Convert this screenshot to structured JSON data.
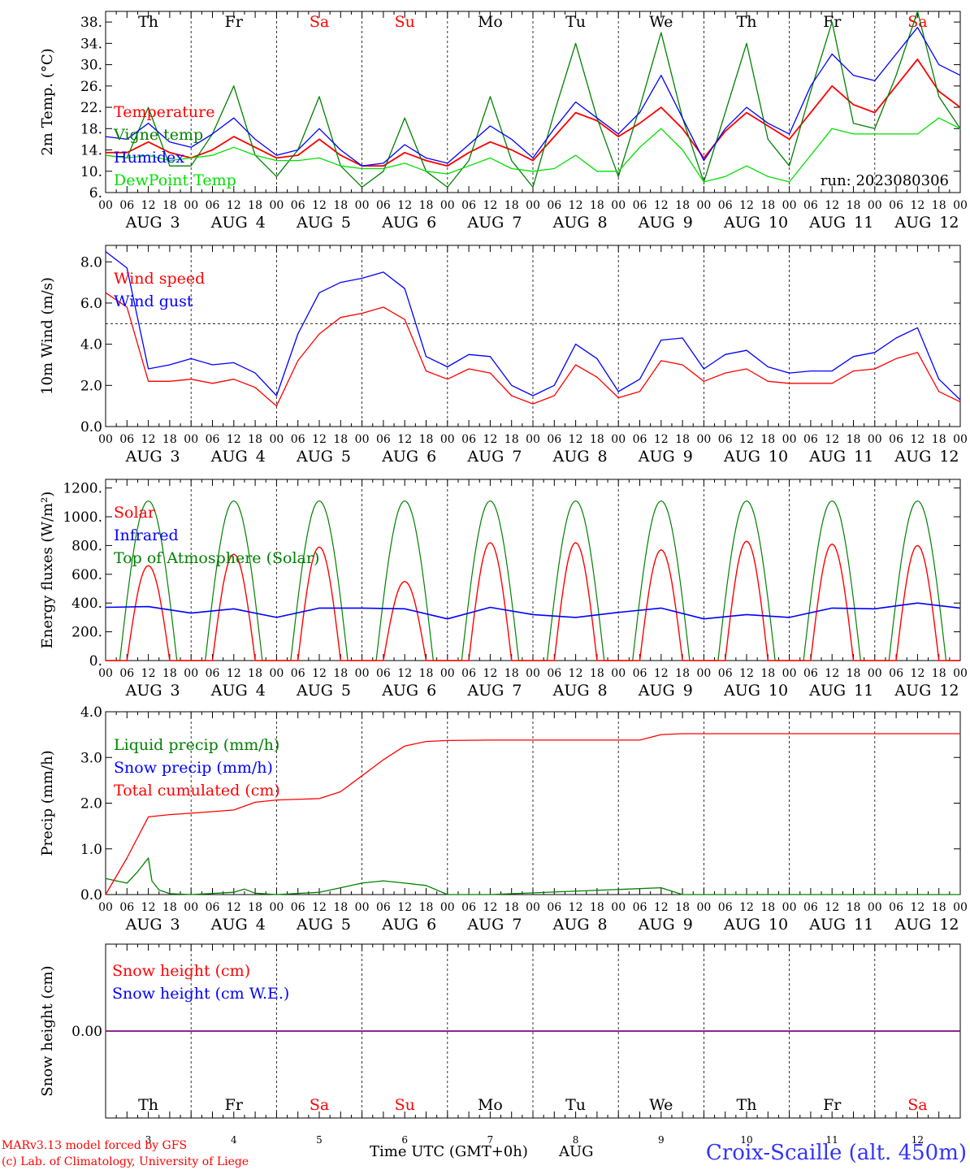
{
  "meta": {
    "run_label": "run: 2023080306",
    "station": "Croix-Scaille (alt. 450m)",
    "credits": [
      "MARv3.13 model forced by GFS",
      "(c) Lab. of Climatology, University of Liege"
    ],
    "xaxis_title": "Time UTC (GMT+0h)",
    "month": "AUG"
  },
  "days": [
    {
      "abbr": "Th",
      "weekend": false,
      "date": "3"
    },
    {
      "abbr": "Fr",
      "weekend": false,
      "date": "4"
    },
    {
      "abbr": "Sa",
      "weekend": true,
      "date": "5"
    },
    {
      "abbr": "Su",
      "weekend": true,
      "date": "6"
    },
    {
      "abbr": "Mo",
      "weekend": false,
      "date": "7"
    },
    {
      "abbr": "Tu",
      "weekend": false,
      "date": "8"
    },
    {
      "abbr": "We",
      "weekend": false,
      "date": "9"
    },
    {
      "abbr": "Th",
      "weekend": false,
      "date": "10"
    },
    {
      "abbr": "Fr",
      "weekend": false,
      "date": "11"
    },
    {
      "abbr": "Sa",
      "weekend": true,
      "date": "12"
    }
  ],
  "hour_labels": [
    "00",
    "06",
    "12",
    "18"
  ],
  "end_hour_label": "00",
  "date_label_prefix": "AUG",
  "colors": {
    "red": "#ff0000",
    "green": "#008000",
    "blue": "#0000ff",
    "lime": "#00e000",
    "purple": "#800080",
    "station": "#3333ff"
  },
  "chart_data": [
    {
      "type": "line",
      "ylabel": "2m Temp. (°C)",
      "ylim": [
        6,
        40
      ],
      "yticks": [
        6,
        10,
        14,
        18,
        22,
        26,
        30,
        34,
        38
      ],
      "ytick_labels": [
        "6.",
        "10.",
        "14.",
        "18.",
        "22.",
        "26.",
        "30.",
        "34.",
        "38."
      ],
      "series": [
        {
          "name": "Temperature",
          "color": "#ff0000",
          "x": [
            0,
            6,
            12,
            18,
            24,
            30,
            36,
            42,
            48,
            54,
            60,
            66,
            72,
            78,
            84,
            90,
            96,
            102,
            108,
            114,
            120,
            126,
            132,
            138,
            144,
            150,
            156,
            162,
            168,
            174,
            180,
            186,
            192,
            198,
            204,
            210,
            216,
            222,
            228,
            234,
            240
          ],
          "y": [
            13.5,
            13.5,
            15.5,
            13.5,
            12.5,
            14,
            16.5,
            14.5,
            12.5,
            13,
            16,
            13,
            11,
            11,
            13.5,
            12,
            11,
            13.5,
            15.5,
            14,
            12,
            16.5,
            21,
            19.5,
            16.5,
            19,
            22,
            18,
            12.5,
            17.5,
            21,
            18.5,
            16,
            21,
            26,
            22.5,
            21,
            26,
            31,
            25,
            22
          ]
        },
        {
          "name": "Vigne temp",
          "color": "#008000",
          "x": [
            0,
            6,
            12,
            18,
            24,
            30,
            36,
            42,
            48,
            54,
            60,
            66,
            72,
            78,
            84,
            90,
            96,
            102,
            108,
            114,
            120,
            126,
            132,
            138,
            144,
            150,
            156,
            162,
            168,
            174,
            180,
            186,
            192,
            198,
            204,
            210,
            216,
            222,
            228,
            234,
            240
          ],
          "y": [
            13,
            12.5,
            22,
            11,
            11,
            17,
            26,
            13,
            9,
            14,
            24,
            11,
            7,
            10,
            20,
            10,
            7,
            12,
            24,
            12,
            7,
            21,
            34,
            20,
            9,
            22,
            36,
            20,
            8,
            21,
            34,
            16,
            11,
            25,
            38,
            19,
            18,
            28,
            40,
            24,
            18
          ]
        },
        {
          "name": "Humidex",
          "color": "#0000ff",
          "x": [
            0,
            6,
            12,
            18,
            24,
            30,
            36,
            42,
            48,
            54,
            60,
            66,
            72,
            78,
            84,
            90,
            96,
            102,
            108,
            114,
            120,
            126,
            132,
            138,
            144,
            150,
            156,
            162,
            168,
            174,
            180,
            186,
            192,
            198,
            204,
            210,
            216,
            222,
            228,
            234,
            240
          ],
          "y": [
            16.5,
            16,
            19,
            15.5,
            14.5,
            17,
            20,
            16,
            13,
            14,
            18,
            14,
            11,
            11.5,
            15,
            12.5,
            11.5,
            15,
            18.5,
            16,
            12.5,
            18,
            23,
            20,
            17,
            21,
            28,
            20,
            12,
            18,
            22,
            19,
            17,
            26,
            32,
            28,
            27,
            32,
            37,
            30,
            28
          ]
        },
        {
          "name": "DewPoint Temp",
          "color": "#00e000",
          "x": [
            0,
            6,
            12,
            18,
            24,
            30,
            36,
            42,
            48,
            54,
            60,
            66,
            72,
            78,
            84,
            90,
            96,
            102,
            108,
            114,
            120,
            126,
            132,
            138,
            144,
            150,
            156,
            162,
            168,
            174,
            180,
            186,
            192,
            198,
            204,
            210,
            216,
            222,
            228,
            234,
            240
          ],
          "y": [
            13,
            12.5,
            13,
            12,
            12.5,
            13,
            14.5,
            13,
            12,
            12,
            12.5,
            11,
            10.5,
            10.5,
            11.5,
            10,
            9.5,
            11,
            12.5,
            10.5,
            10,
            10.5,
            13,
            10,
            10,
            14.5,
            18,
            14,
            8,
            9,
            11,
            9,
            8,
            13,
            18,
            17,
            17,
            17,
            17,
            20,
            18
          ]
        }
      ]
    },
    {
      "type": "line",
      "ylabel": "10m Wind (m/s)",
      "ylim": [
        0,
        8.8
      ],
      "yticks": [
        0,
        2,
        4,
        6,
        8
      ],
      "ytick_labels": [
        "0.0",
        "2.0",
        "4.0",
        "6.0",
        "8.0"
      ],
      "reference_line": 5,
      "series": [
        {
          "name": "Wind speed",
          "color": "#ff0000",
          "x": [
            0,
            6,
            12,
            18,
            24,
            30,
            36,
            42,
            48,
            54,
            60,
            66,
            72,
            78,
            84,
            90,
            96,
            102,
            108,
            114,
            120,
            126,
            132,
            138,
            144,
            150,
            156,
            162,
            168,
            174,
            180,
            186,
            192,
            198,
            204,
            210,
            216,
            222,
            228,
            234,
            240
          ],
          "y": [
            6.5,
            5.8,
            2.2,
            2.2,
            2.3,
            2.1,
            2.3,
            1.9,
            1,
            3.2,
            4.5,
            5.3,
            5.5,
            5.8,
            5.2,
            2.7,
            2.3,
            2.8,
            2.6,
            1.5,
            1.1,
            1.5,
            3,
            2.4,
            1.4,
            1.7,
            3.2,
            3,
            2.2,
            2.6,
            2.8,
            2.2,
            2.1,
            2.1,
            2.1,
            2.7,
            2.8,
            3.3,
            3.6,
            1.7,
            1.2
          ]
        },
        {
          "name": "Wind gust",
          "color": "#0000ff",
          "x": [
            0,
            6,
            12,
            18,
            24,
            30,
            36,
            42,
            48,
            54,
            60,
            66,
            72,
            78,
            84,
            90,
            96,
            102,
            108,
            114,
            120,
            126,
            132,
            138,
            144,
            150,
            156,
            162,
            168,
            174,
            180,
            186,
            192,
            198,
            204,
            210,
            216,
            222,
            228,
            234,
            240
          ],
          "y": [
            8.5,
            7.7,
            2.8,
            3,
            3.3,
            3,
            3.1,
            2.6,
            1.5,
            4.5,
            6.5,
            7,
            7.2,
            7.5,
            6.7,
            3.4,
            2.9,
            3.5,
            3.4,
            2,
            1.5,
            2,
            4,
            3.3,
            1.7,
            2.3,
            4.2,
            4.3,
            2.8,
            3.5,
            3.7,
            2.9,
            2.6,
            2.7,
            2.7,
            3.4,
            3.6,
            4.3,
            4.8,
            2.3,
            1.3
          ]
        }
      ]
    },
    {
      "type": "line",
      "ylabel": "Energy fluxes (W/m²)",
      "ylim": [
        0,
        1260
      ],
      "yticks": [
        0,
        200,
        400,
        600,
        800,
        1000,
        1200
      ],
      "ytick_labels": [
        "0.",
        "200.",
        "400.",
        "600.",
        "800.",
        "1000.",
        "1200."
      ],
      "toa_peak": 1110,
      "toa_sunrise_hour": 4,
      "toa_sunset_hour": 20,
      "series": [
        {
          "name": "Solar",
          "color": "#ff0000",
          "daily_peaks": [
            660,
            740,
            790,
            550,
            820,
            820,
            770,
            830,
            810,
            800
          ]
        },
        {
          "name": "Infrared",
          "color": "#0000ff",
          "x": [
            0,
            12,
            24,
            36,
            48,
            60,
            72,
            84,
            96,
            108,
            120,
            132,
            144,
            156,
            168,
            180,
            192,
            204,
            216,
            228,
            240
          ],
          "y": [
            370,
            375,
            330,
            360,
            300,
            365,
            365,
            360,
            290,
            370,
            320,
            300,
            335,
            365,
            290,
            320,
            300,
            365,
            360,
            400,
            365
          ]
        },
        {
          "name": "Top of Atmosphere (Solar)",
          "color": "#008000"
        }
      ]
    },
    {
      "type": "line",
      "ylabel": "Precip (mm/h)",
      "ylim": [
        0,
        4
      ],
      "yticks": [
        0,
        1,
        2,
        3,
        4
      ],
      "ytick_labels": [
        "0.0",
        "1.0",
        "2.0",
        "3.0",
        "4.0"
      ],
      "series": [
        {
          "name": "Liquid precip (mm/h)",
          "color": "#008000",
          "x": [
            0,
            3,
            6,
            9,
            12,
            13,
            15,
            18,
            24,
            36,
            39,
            42,
            48,
            60,
            66,
            72,
            78,
            84,
            90,
            96,
            108,
            156,
            162,
            240
          ],
          "y": [
            0.35,
            0.3,
            0.25,
            0.5,
            0.8,
            0.3,
            0.1,
            0.02,
            0,
            0.05,
            0.12,
            0.03,
            0,
            0.05,
            0.15,
            0.25,
            0.3,
            0.25,
            0.2,
            0,
            0,
            0.15,
            0,
            0
          ]
        },
        {
          "name": "Snow precip (mm/h)",
          "color": "#0000ff"
        },
        {
          "name": "Total cumulated (cm)",
          "color": "#ff0000",
          "x": [
            0,
            6,
            12,
            18,
            24,
            36,
            42,
            48,
            60,
            66,
            72,
            78,
            84,
            90,
            96,
            108,
            150,
            156,
            162,
            240
          ],
          "y": [
            0,
            0.8,
            1.7,
            1.75,
            1.78,
            1.85,
            2.02,
            2.07,
            2.1,
            2.25,
            2.6,
            2.95,
            3.25,
            3.35,
            3.37,
            3.38,
            3.38,
            3.5,
            3.52,
            3.52
          ]
        }
      ]
    },
    {
      "type": "line",
      "ylabel": "Snow height (cm)",
      "ylim": [
        -1,
        1
      ],
      "yticks": [
        0
      ],
      "ytick_labels": [
        "0.00"
      ],
      "series": [
        {
          "name": "Snow height (cm)",
          "color": "#ff0000",
          "x": [
            0,
            240
          ],
          "y": [
            0,
            0
          ]
        },
        {
          "name": "Snow height (cm W.E.)",
          "color": "#0000ff",
          "x": [
            0,
            240
          ],
          "y": [
            0,
            0
          ]
        }
      ]
    }
  ]
}
